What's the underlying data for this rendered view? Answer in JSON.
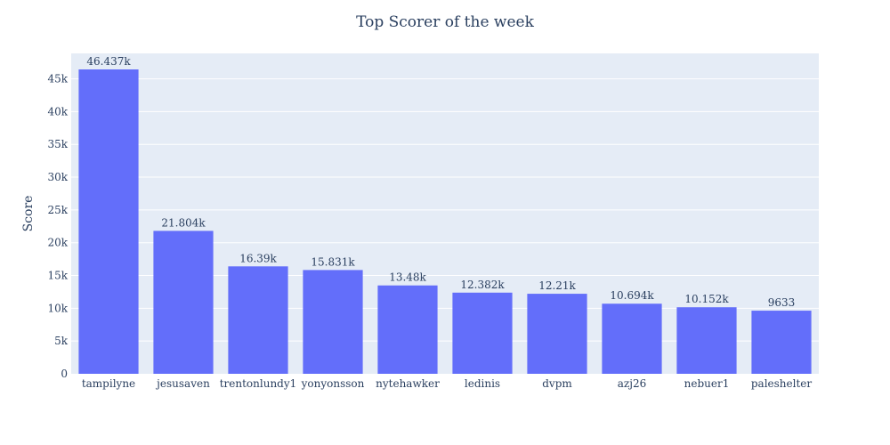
{
  "chart_data": {
    "type": "bar",
    "title": "Top Scorer of the week",
    "xlabel": "",
    "ylabel": "Score",
    "categories": [
      "tampilyne",
      "jesusaven",
      "trentonlundy1",
      "yonyonsson",
      "nytehawker",
      "ledinis",
      "dvpm",
      "azj26",
      "nebuer1",
      "paleshelter"
    ],
    "values": [
      46437,
      21804,
      16390,
      15831,
      13480,
      12382,
      12210,
      10694,
      10152,
      9633
    ],
    "value_labels": [
      "46.437k",
      "21.804k",
      "16.39k",
      "15.831k",
      "13.48k",
      "12.382k",
      "12.21k",
      "10.694k",
      "10.152k",
      "9633"
    ],
    "ylim": [
      0,
      48880
    ],
    "yticks": [
      0,
      5000,
      10000,
      15000,
      20000,
      25000,
      30000,
      35000,
      40000,
      45000
    ],
    "ytick_labels": [
      "0",
      "5k",
      "10k",
      "15k",
      "20k",
      "25k",
      "30k",
      "35k",
      "40k",
      "45k"
    ],
    "grid": true,
    "colors": {
      "bar": "#636efa",
      "plot_bg": "#e5ecf6",
      "grid": "#ffffff",
      "text": "#2a3f5f"
    }
  }
}
